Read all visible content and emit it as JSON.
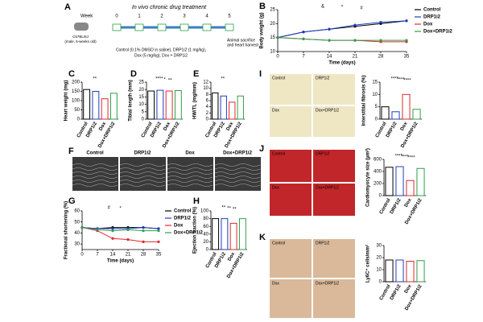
{
  "panel_a": {
    "panel": "A",
    "title": "In vivo chronic drug treatment",
    "week_label": "Week",
    "weeks": [
      "0",
      "1",
      "2",
      "3",
      "4",
      "5"
    ],
    "mouse": [
      "C57BL/6J",
      "(male, 6-weeks old)"
    ],
    "treatment": [
      "Control (0.1% DMSO in saline), DRP1i2 (1 mg/kg),",
      "Dox (5 mg/kg), Dox + DRP1i2"
    ],
    "end": [
      "Animal sacrifice",
      "and heart harvest"
    ]
  },
  "panel_f": {
    "panel": "F",
    "labels": [
      "Control",
      "DRP1i2",
      "Dox",
      "Dox+DRP1i2"
    ]
  },
  "micrographs": [
    {
      "labels": [
        "Control",
        "DRP1i2",
        "Dox",
        "Dox+DRP1i2"
      ]
    },
    {
      "labels": [
        "Control",
        "DRP1i2",
        "Dox",
        "Dox+DRP1i2"
      ]
    },
    {
      "labels": [
        "Control",
        "DRP1i2",
        "Dox",
        "Dox+DRP1i2"
      ]
    }
  ],
  "chart_data": [
    {
      "type": "line",
      "panel": "B",
      "y_label": "Body weight (g)",
      "x_label": "Time (days)",
      "x": [
        0,
        7,
        14,
        21,
        28,
        35
      ],
      "xlim": [
        0,
        35
      ],
      "xticks": [
        0,
        7,
        14,
        21,
        28,
        35
      ],
      "ylim": [
        10,
        25
      ],
      "yticks": [
        10,
        15,
        20,
        25
      ],
      "annotations": [
        "&",
        "*",
        "#"
      ],
      "series": [
        {
          "name": "Control",
          "color": "#000000",
          "values": [
            15,
            17,
            18,
            19,
            20,
            21
          ]
        },
        {
          "name": "DRP1i2",
          "color": "#1f3fbf",
          "values": [
            15,
            17,
            18,
            19.5,
            20.5,
            21
          ]
        },
        {
          "name": "Dox",
          "color": "#e0282e",
          "values": [
            15,
            14.5,
            14,
            14,
            13.5,
            13.5
          ]
        },
        {
          "name": "Dox+DRP1i2",
          "color": "#2e9e4a",
          "values": [
            15,
            14.5,
            14,
            14,
            14,
            14
          ]
        }
      ]
    },
    {
      "type": "bar",
      "panel": "C",
      "y_label": "Heart weight (mg)",
      "categories": [
        "Control",
        "DRP1i2",
        "Dox",
        "Dox+DRP1i2"
      ],
      "values": [
        160,
        150,
        110,
        140
      ],
      "colors": [
        "#000000",
        "#1f3fbf",
        "#e0282e",
        "#2e9e4a"
      ],
      "ylim": [
        0,
        200
      ],
      "yticks": [
        0,
        50,
        100,
        150,
        200
      ],
      "annotations": [
        "**"
      ]
    },
    {
      "type": "bar",
      "panel": "D",
      "y_label": "Tibial length (mm)",
      "categories": [
        "Control",
        "DRP1i2",
        "Dox",
        "Dox+DRP1i2"
      ],
      "values": [
        19,
        19.5,
        19,
        19.3
      ],
      "colors": [
        "#000000",
        "#1f3fbf",
        "#e0282e",
        "#2e9e4a"
      ],
      "ylim": [
        0,
        25
      ],
      "yticks": [
        0,
        5,
        10,
        15,
        20,
        25
      ],
      "annotations": [
        "****",
        "*",
        "**"
      ]
    },
    {
      "type": "bar",
      "panel": "E",
      "y_label": "HW/TL (mg/mm)",
      "categories": [
        "Control",
        "DRP1i2",
        "Dox",
        "Dox+DRP1i2"
      ],
      "values": [
        8.5,
        7.5,
        5.5,
        7.5
      ],
      "colors": [
        "#000000",
        "#1f3fbf",
        "#e0282e",
        "#2e9e4a"
      ],
      "ylim": [
        0,
        12
      ],
      "yticks": [
        0,
        2,
        4,
        6,
        8,
        10,
        12
      ],
      "annotations": [
        "**"
      ]
    },
    {
      "type": "line",
      "panel": "G",
      "y_label": "Fractional shortening (%)",
      "x_label": "Time (days)",
      "x": [
        0,
        7,
        14,
        21,
        28,
        35
      ],
      "xlim": [
        0,
        35
      ],
      "xticks": [
        0,
        7,
        14,
        21,
        28,
        35
      ],
      "ylim": [
        25,
        60
      ],
      "yticks": [
        30,
        40,
        50,
        60
      ],
      "annotations": [
        "#",
        "*"
      ],
      "series": [
        {
          "name": "Control",
          "color": "#000000",
          "values": [
            45,
            44,
            45,
            45,
            45,
            44
          ]
        },
        {
          "name": "DRP1i2",
          "color": "#1f3fbf",
          "values": [
            45,
            44,
            44,
            44,
            45,
            44
          ]
        },
        {
          "name": "Dox",
          "color": "#e0282e",
          "values": [
            45,
            42,
            35,
            34,
            32,
            32
          ]
        },
        {
          "name": "Dox+DRP1i2",
          "color": "#2e9e4a",
          "values": [
            45,
            43,
            42,
            43,
            42,
            42
          ]
        }
      ]
    },
    {
      "type": "bar",
      "panel": "H",
      "y_label": "Ejection fraction (%)",
      "categories": [
        "Control",
        "DRP1i2",
        "Dox",
        "Dox+DRP1i2"
      ],
      "values": [
        80,
        80,
        68,
        80
      ],
      "colors": [
        "#000000",
        "#1f3fbf",
        "#e0282e",
        "#2e9e4a"
      ],
      "ylim": [
        0,
        100
      ],
      "yticks": [
        0,
        20,
        40,
        60,
        80,
        100
      ],
      "annotations": [
        "**",
        "**",
        "**"
      ]
    },
    {
      "type": "bar",
      "panel": "I",
      "y_label": "Interstitial fibrosis (%)",
      "categories": [
        "Control",
        "DRP1i2",
        "Dox",
        "Dox+DRP1i2"
      ],
      "values": [
        5,
        3,
        10,
        4
      ],
      "colors": [
        "#000000",
        "#1f3fbf",
        "#e0282e",
        "#2e9e4a"
      ],
      "ylim": [
        0,
        15
      ],
      "yticks": [
        0,
        5,
        10,
        15
      ],
      "annotations": [
        "****",
        "****",
        "****"
      ]
    },
    {
      "type": "bar",
      "panel": "J",
      "y_label": "Cardiomyocyte size (µm²)",
      "categories": [
        "Control",
        "DRP1i2",
        "Dox",
        "Dox+DRP1i2"
      ],
      "values": [
        470,
        480,
        250,
        450
      ],
      "colors": [
        "#000000",
        "#1f3fbf",
        "#e0282e",
        "#2e9e4a"
      ],
      "ylim": [
        0,
        600
      ],
      "yticks": [
        0,
        200,
        400,
        600
      ],
      "annotations": [
        "****",
        "****",
        "****"
      ]
    },
    {
      "type": "bar",
      "panel": "K",
      "y_label": "Ly6C⁺ cells/mm²",
      "categories": [
        "Control",
        "DRP1i2",
        "Dox",
        "Dox+DRP1i2"
      ],
      "values": [
        18,
        18,
        17,
        17.5
      ],
      "colors": [
        "#000000",
        "#1f3fbf",
        "#e0282e",
        "#2e9e4a"
      ],
      "ylim": [
        0,
        30
      ],
      "yticks": [
        0,
        10,
        20,
        30
      ],
      "annotations": []
    }
  ]
}
